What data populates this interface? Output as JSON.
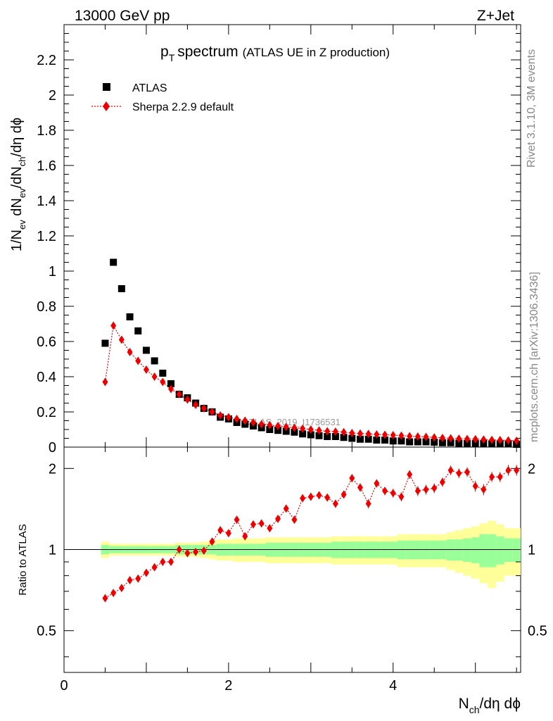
{
  "header": {
    "energy": "13000 GeV pp",
    "process": "Z+Jet"
  },
  "side_labels": {
    "rivet": "Rivet 3.1.10,  3M events",
    "source": "mcplots.cern.ch [arXiv:1306.3436]"
  },
  "chart_data": {
    "type": "scatter",
    "title": "p",
    "title_sub": "T",
    "title_main": "spectrum",
    "title_detail": "(ATLAS UE in Z production)",
    "watermark": "ATLAS_2019_I1736531",
    "ylabel": "1/N",
    "ylabel_parts": [
      "1/N",
      "ev",
      " dN",
      "ev",
      "/dN",
      "ch",
      "/dη dϕ"
    ],
    "xlabel_parts": [
      "N",
      "ch",
      "/dη dϕ"
    ],
    "xlim": [
      0,
      5.55
    ],
    "ylim": [
      0,
      2.4
    ],
    "ratio_ylabel": "Ratio to ATLAS",
    "ratio_ylim": [
      0.35,
      2.4
    ],
    "ratio_log": true,
    "xticks": [
      0,
      2,
      4
    ],
    "yticks": [
      0,
      0.2,
      0.4,
      0.6,
      0.8,
      1,
      1.2,
      1.4,
      1.6,
      1.8,
      2,
      2.2
    ],
    "ratio_yticks": [
      0.5,
      1,
      2
    ],
    "x": [
      0.5,
      0.6,
      0.7,
      0.8,
      0.9,
      1.0,
      1.1,
      1.2,
      1.3,
      1.4,
      1.5,
      1.6,
      1.7,
      1.8,
      1.9,
      2.0,
      2.1,
      2.2,
      2.3,
      2.4,
      2.5,
      2.6,
      2.7,
      2.8,
      2.9,
      3.0,
      3.1,
      3.2,
      3.3,
      3.4,
      3.5,
      3.6,
      3.7,
      3.8,
      3.9,
      4.0,
      4.1,
      4.2,
      4.3,
      4.4,
      4.5,
      4.6,
      4.7,
      4.8,
      4.9,
      5.0,
      5.1,
      5.2,
      5.3,
      5.4,
      5.5
    ],
    "series": [
      {
        "name": "ATLAS",
        "color": "#000000",
        "marker": "square",
        "values": [
          0.59,
          1.05,
          0.9,
          0.74,
          0.66,
          0.55,
          0.49,
          0.42,
          0.36,
          0.3,
          0.28,
          0.25,
          0.22,
          0.2,
          0.17,
          0.16,
          0.14,
          0.13,
          0.12,
          0.11,
          0.1,
          0.095,
          0.09,
          0.085,
          0.075,
          0.07,
          0.065,
          0.06,
          0.06,
          0.055,
          0.05,
          0.045,
          0.045,
          0.04,
          0.04,
          0.035,
          0.035,
          0.03,
          0.03,
          0.03,
          0.028,
          0.025,
          0.025,
          0.022,
          0.02,
          0.02,
          0.02,
          0.018,
          0.018,
          0.018,
          0.016
        ]
      },
      {
        "name": "Sherpa 2.2.9 default",
        "color": "#ee0000",
        "marker": "diamond",
        "values": [
          0.37,
          0.69,
          0.61,
          0.54,
          0.49,
          0.44,
          0.4,
          0.37,
          0.33,
          0.3,
          0.27,
          0.24,
          0.22,
          0.2,
          0.18,
          0.17,
          0.16,
          0.15,
          0.14,
          0.13,
          0.125,
          0.12,
          0.115,
          0.11,
          0.105,
          0.1,
          0.095,
          0.09,
          0.088,
          0.085,
          0.08,
          0.077,
          0.075,
          0.072,
          0.07,
          0.068,
          0.065,
          0.062,
          0.06,
          0.058,
          0.055,
          0.052,
          0.05,
          0.048,
          0.046,
          0.045,
          0.043,
          0.041,
          0.04,
          0.038,
          0.036
        ]
      }
    ],
    "ratio": [
      0.66,
      0.69,
      0.72,
      0.77,
      0.78,
      0.82,
      0.86,
      0.9,
      0.9,
      1.0,
      0.97,
      0.98,
      0.99,
      1.07,
      1.18,
      1.15,
      1.29,
      1.12,
      1.24,
      1.25,
      1.2,
      1.3,
      1.42,
      1.29,
      1.55,
      1.57,
      1.59,
      1.56,
      1.48,
      1.6,
      1.84,
      1.7,
      1.48,
      1.76,
      1.65,
      1.62,
      1.57,
      1.9,
      1.65,
      1.67,
      1.69,
      1.78,
      1.97,
      1.92,
      1.94,
      1.72,
      1.67,
      1.86,
      1.86,
      1.97,
      1.97
    ],
    "ratio_errors": [
      0.02,
      0.02,
      0.02,
      0.02,
      0.02,
      0.02,
      0.02,
      0.02,
      0.02,
      0.02,
      0.02,
      0.02,
      0.02,
      0.02,
      0.03,
      0.03,
      0.03,
      0.03,
      0.03,
      0.03,
      0.03,
      0.04,
      0.04,
      0.04,
      0.04,
      0.05,
      0.05,
      0.05,
      0.05,
      0.05,
      0.06,
      0.06,
      0.06,
      0.06,
      0.06,
      0.06,
      0.06,
      0.07,
      0.07,
      0.07,
      0.07,
      0.07,
      0.08,
      0.08,
      0.08,
      0.08,
      0.08,
      0.08,
      0.08,
      0.09,
      0.09
    ],
    "band_inner": [
      0.04,
      0.03,
      0.03,
      0.03,
      0.03,
      0.03,
      0.03,
      0.03,
      0.03,
      0.04,
      0.04,
      0.04,
      0.04,
      0.04,
      0.05,
      0.05,
      0.05,
      0.05,
      0.05,
      0.05,
      0.06,
      0.06,
      0.06,
      0.06,
      0.06,
      0.06,
      0.06,
      0.06,
      0.07,
      0.07,
      0.07,
      0.07,
      0.07,
      0.07,
      0.07,
      0.07,
      0.08,
      0.08,
      0.08,
      0.08,
      0.08,
      0.08,
      0.09,
      0.09,
      0.1,
      0.11,
      0.14,
      0.14,
      0.12,
      0.1,
      0.1
    ],
    "band_outer": [
      0.07,
      0.05,
      0.05,
      0.05,
      0.05,
      0.05,
      0.05,
      0.05,
      0.05,
      0.06,
      0.06,
      0.06,
      0.07,
      0.08,
      0.09,
      0.09,
      0.1,
      0.1,
      0.1,
      0.1,
      0.11,
      0.11,
      0.11,
      0.11,
      0.11,
      0.11,
      0.11,
      0.11,
      0.12,
      0.12,
      0.12,
      0.12,
      0.12,
      0.12,
      0.12,
      0.12,
      0.14,
      0.14,
      0.14,
      0.14,
      0.14,
      0.14,
      0.16,
      0.18,
      0.2,
      0.22,
      0.25,
      0.28,
      0.24,
      0.2,
      0.2
    ]
  }
}
